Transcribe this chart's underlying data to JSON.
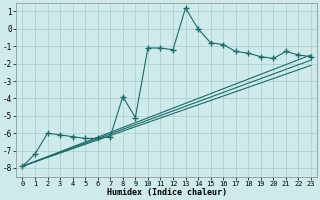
{
  "xlabel": "Humidex (Indice chaleur)",
  "background_color": "#ceeaea",
  "grid_color": "#aacccc",
  "line_color": "#1a6b6b",
  "xlim": [
    -0.5,
    23.5
  ],
  "ylim": [
    -8.5,
    1.5
  ],
  "yticks": [
    1,
    0,
    -1,
    -2,
    -3,
    -4,
    -5,
    -6,
    -7,
    -8
  ],
  "xticks": [
    0,
    1,
    2,
    3,
    4,
    5,
    6,
    7,
    8,
    9,
    10,
    11,
    12,
    13,
    14,
    15,
    16,
    17,
    18,
    19,
    20,
    21,
    22,
    23
  ],
  "series": [
    {
      "x": [
        0,
        1,
        2,
        3,
        4,
        5,
        6,
        7,
        8,
        9,
        10,
        11,
        12,
        13,
        14,
        15,
        16,
        17,
        18,
        19,
        20,
        21,
        22,
        23
      ],
      "y": [
        -7.9,
        -7.2,
        -6.0,
        -6.1,
        -6.2,
        -6.3,
        -6.3,
        -6.2,
        -3.9,
        -5.1,
        -1.1,
        -1.1,
        -1.2,
        1.2,
        0.0,
        -0.8,
        -0.9,
        -1.3,
        -1.4,
        -1.6,
        -1.7,
        -1.3,
        -1.5,
        -1.6
      ]
    },
    {
      "x": [
        0,
        23
      ],
      "y": [
        -7.9,
        -1.5
      ]
    },
    {
      "x": [
        0,
        23
      ],
      "y": [
        -7.9,
        -1.8
      ]
    },
    {
      "x": [
        0,
        23
      ],
      "y": [
        -7.9,
        -2.1
      ]
    }
  ]
}
